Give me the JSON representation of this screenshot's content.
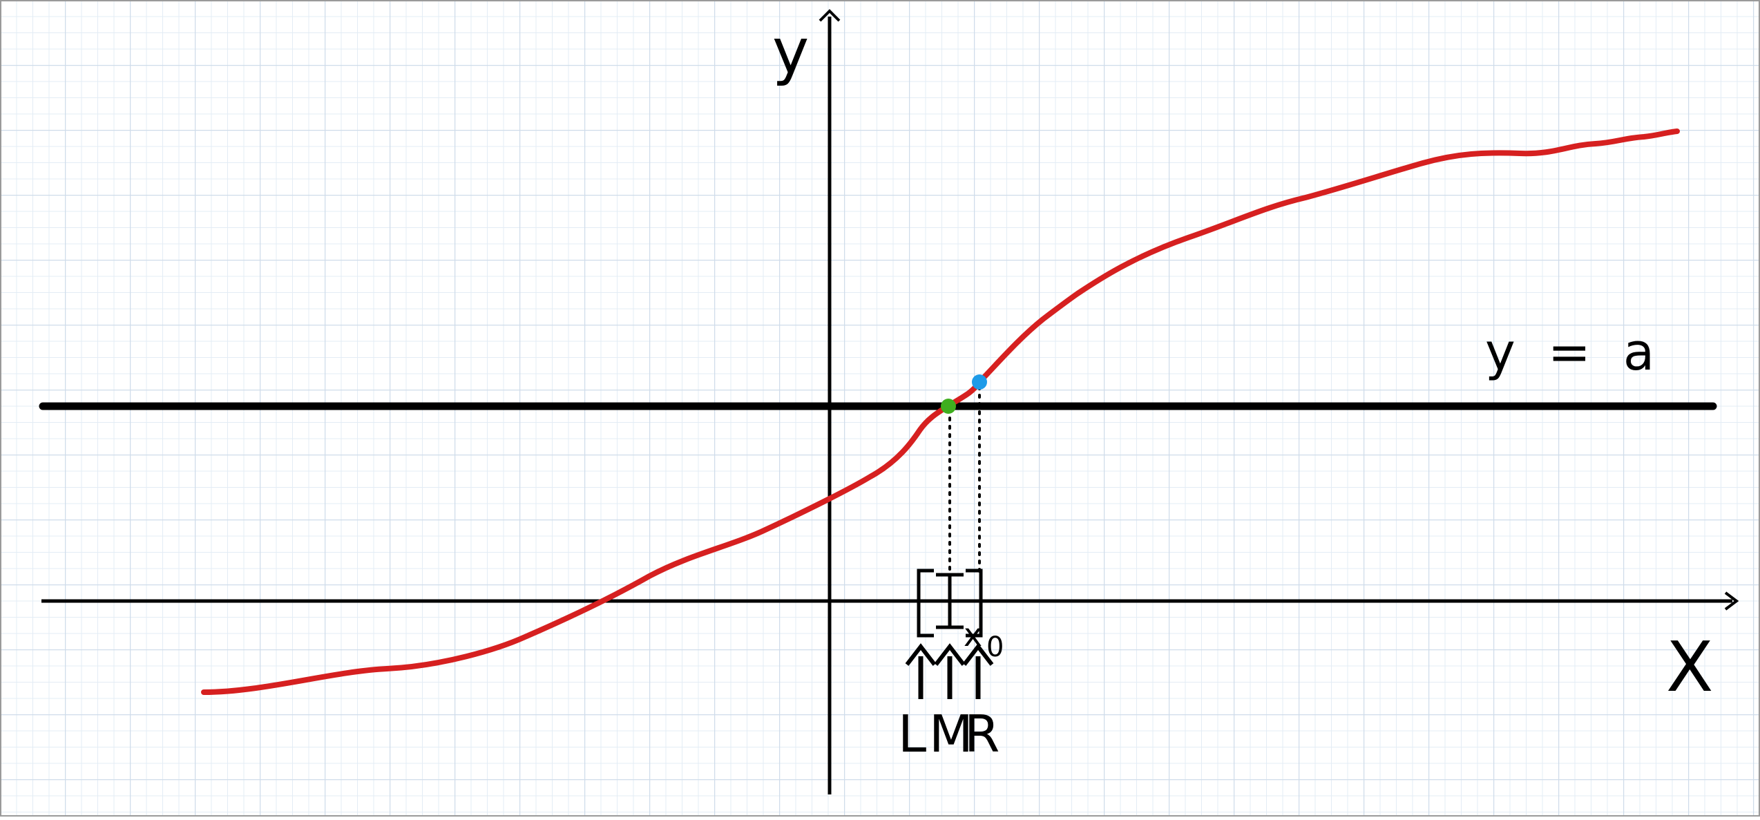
{
  "labels": {
    "y_axis": "y",
    "x_axis": "X",
    "line": "y  =  a",
    "x0": "x",
    "x0_sub": "0",
    "L": "L",
    "M": "M",
    "R": "R"
  },
  "colors": {
    "curve": "#d62020",
    "grid": "#d8e4f0",
    "axes": "#000000",
    "green_point": "#3fae1f",
    "blue_point": "#1e9be8"
  }
}
